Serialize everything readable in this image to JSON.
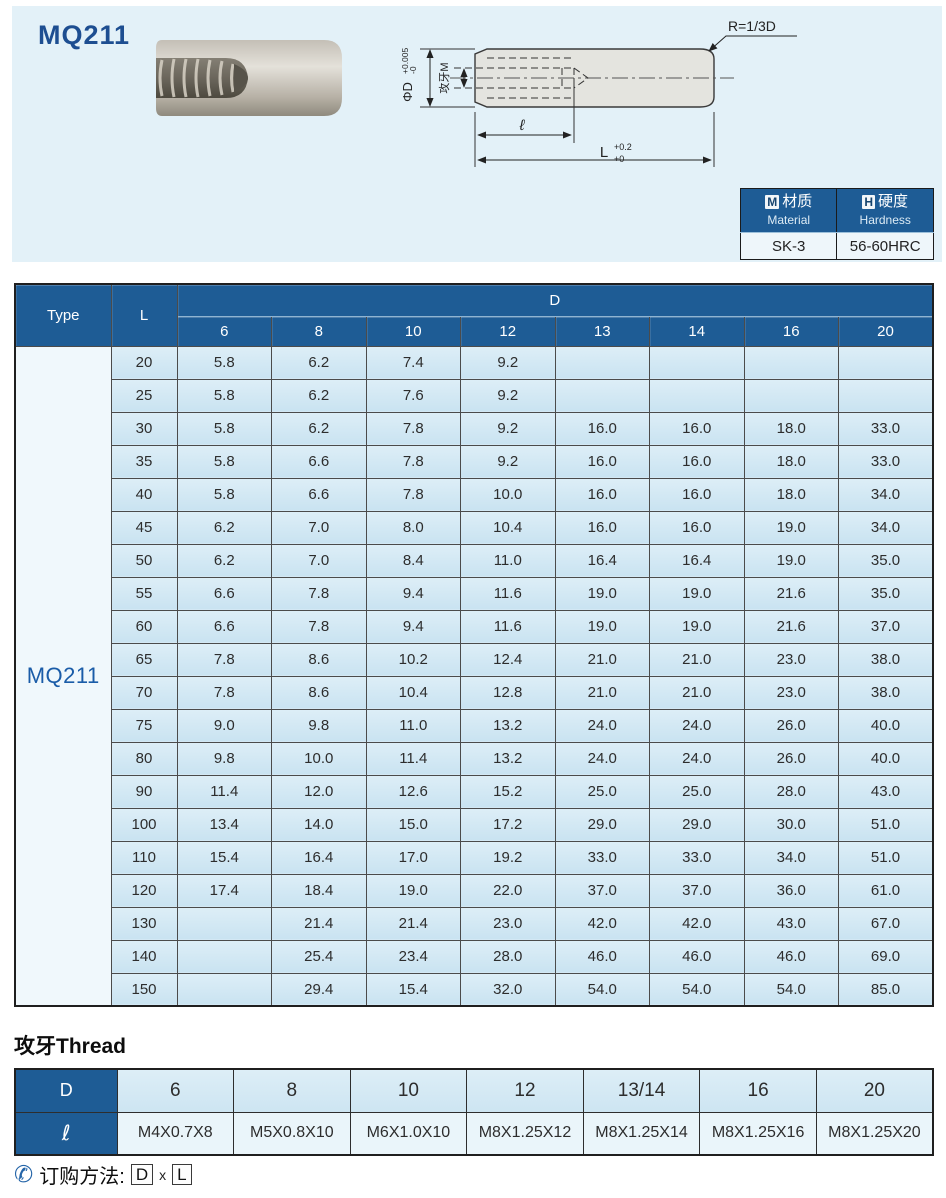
{
  "page_title": "MQ211",
  "drawing": {
    "radius_label": "R=1/3D",
    "diameter_label": "ΦD",
    "diameter_tol_upper": "+0.005",
    "diameter_tol_lower": "-0",
    "thread_label": "攻牙M",
    "thread_depth_label": "ℓ",
    "total_length_label": "L",
    "total_length_tol_upper": "+0.2",
    "total_length_tol_lower": "+0"
  },
  "material_table": {
    "material_letter": "M",
    "material_cn": "材质",
    "material_en": "Material",
    "hardness_letter": "H",
    "hardness_cn": "硬度",
    "hardness_en": "Hardness",
    "material_value": "SK-3",
    "hardness_value": "56-60HRC"
  },
  "main_table": {
    "type_label": "Type",
    "l_label": "L",
    "d_label": "D",
    "d_columns": [
      "6",
      "8",
      "10",
      "12",
      "13",
      "14",
      "16",
      "20"
    ],
    "type_value": "MQ211",
    "rows": [
      {
        "L": "20",
        "values": [
          "5.8",
          "6.2",
          "7.4",
          "9.2",
          "",
          "",
          "",
          ""
        ]
      },
      {
        "L": "25",
        "values": [
          "5.8",
          "6.2",
          "7.6",
          "9.2",
          "",
          "",
          "",
          ""
        ]
      },
      {
        "L": "30",
        "values": [
          "5.8",
          "6.2",
          "7.8",
          "9.2",
          "16.0",
          "16.0",
          "18.0",
          "33.0"
        ]
      },
      {
        "L": "35",
        "values": [
          "5.8",
          "6.6",
          "7.8",
          "9.2",
          "16.0",
          "16.0",
          "18.0",
          "33.0"
        ]
      },
      {
        "L": "40",
        "values": [
          "5.8",
          "6.6",
          "7.8",
          "10.0",
          "16.0",
          "16.0",
          "18.0",
          "34.0"
        ]
      },
      {
        "L": "45",
        "values": [
          "6.2",
          "7.0",
          "8.0",
          "10.4",
          "16.0",
          "16.0",
          "19.0",
          "34.0"
        ]
      },
      {
        "L": "50",
        "values": [
          "6.2",
          "7.0",
          "8.4",
          "11.0",
          "16.4",
          "16.4",
          "19.0",
          "35.0"
        ]
      },
      {
        "L": "55",
        "values": [
          "6.6",
          "7.8",
          "9.4",
          "11.6",
          "19.0",
          "19.0",
          "21.6",
          "35.0"
        ]
      },
      {
        "L": "60",
        "values": [
          "6.6",
          "7.8",
          "9.4",
          "11.6",
          "19.0",
          "19.0",
          "21.6",
          "37.0"
        ]
      },
      {
        "L": "65",
        "values": [
          "7.8",
          "8.6",
          "10.2",
          "12.4",
          "21.0",
          "21.0",
          "23.0",
          "38.0"
        ]
      },
      {
        "L": "70",
        "values": [
          "7.8",
          "8.6",
          "10.4",
          "12.8",
          "21.0",
          "21.0",
          "23.0",
          "38.0"
        ]
      },
      {
        "L": "75",
        "values": [
          "9.0",
          "9.8",
          "11.0",
          "13.2",
          "24.0",
          "24.0",
          "26.0",
          "40.0"
        ]
      },
      {
        "L": "80",
        "values": [
          "9.8",
          "10.0",
          "11.4",
          "13.2",
          "24.0",
          "24.0",
          "26.0",
          "40.0"
        ]
      },
      {
        "L": "90",
        "values": [
          "11.4",
          "12.0",
          "12.6",
          "15.2",
          "25.0",
          "25.0",
          "28.0",
          "43.0"
        ]
      },
      {
        "L": "100",
        "values": [
          "13.4",
          "14.0",
          "15.0",
          "17.2",
          "29.0",
          "29.0",
          "30.0",
          "51.0"
        ]
      },
      {
        "L": "110",
        "values": [
          "15.4",
          "16.4",
          "17.0",
          "19.2",
          "33.0",
          "33.0",
          "34.0",
          "51.0"
        ]
      },
      {
        "L": "120",
        "values": [
          "17.4",
          "18.4",
          "19.0",
          "22.0",
          "37.0",
          "37.0",
          "36.0",
          "61.0"
        ]
      },
      {
        "L": "130",
        "values": [
          "",
          "21.4",
          "21.4",
          "23.0",
          "42.0",
          "42.0",
          "43.0",
          "67.0"
        ]
      },
      {
        "L": "140",
        "values": [
          "",
          "25.4",
          "23.4",
          "28.0",
          "46.0",
          "46.0",
          "46.0",
          "69.0"
        ]
      },
      {
        "L": "150",
        "values": [
          "",
          "29.4",
          "15.4",
          "32.0",
          "54.0",
          "54.0",
          "54.0",
          "85.0"
        ]
      }
    ]
  },
  "thread_section": {
    "heading": "攻牙Thread",
    "d_label": "D",
    "l_label": "ℓ",
    "columns": [
      "6",
      "8",
      "10",
      "12",
      "13/14",
      "16",
      "20"
    ],
    "values": [
      "M4X0.7X8",
      "M5X0.8X10",
      "M6X1.0X10",
      "M8X1.25X12",
      "M8X1.25X14",
      "M8X1.25X16",
      "M8X1.25X20"
    ]
  },
  "order": {
    "phone_icon": "✆",
    "label": "订购方法:",
    "d_box": "D",
    "x_sep": "x",
    "l_box": "L"
  },
  "colors": {
    "header_blue": "#1e5c95",
    "panel_blue": "#e3f1f8",
    "cell_blue": "#cde5f2",
    "title_blue": "#1d4e91"
  }
}
